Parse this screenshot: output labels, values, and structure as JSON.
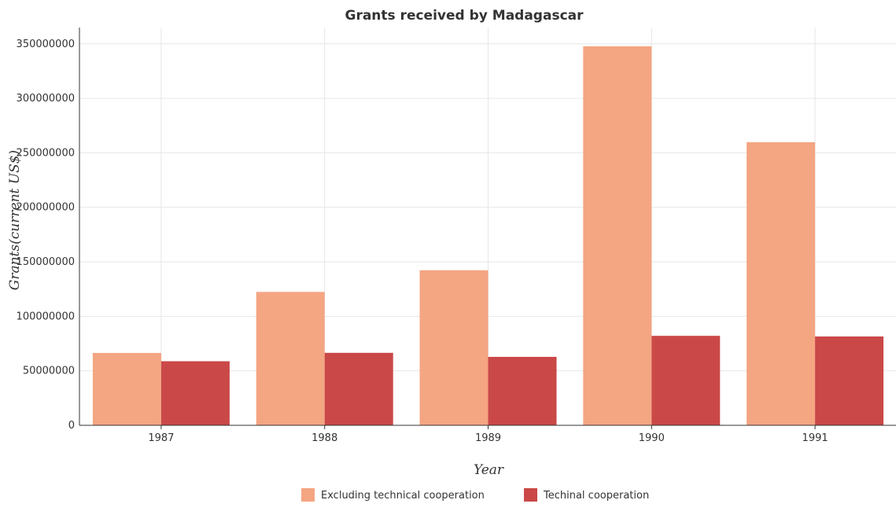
{
  "chart_data": {
    "type": "bar",
    "title": "Grants received by Madagascar",
    "xlabel": "Year",
    "ylabel": "Grants(current US$)",
    "categories": [
      "1987",
      "1988",
      "1989",
      "1990",
      "1991"
    ],
    "series": [
      {
        "name": "Excluding technical cooperation",
        "color": "#f4a582",
        "values": [
          66400000,
          122400000,
          142300000,
          347800000,
          259800000
        ]
      },
      {
        "name": "Techinal cooperation",
        "color": "#ca4848",
        "values": [
          58800000,
          66500000,
          62800000,
          82100000,
          81500000
        ]
      }
    ],
    "ylim": [
      0,
      365000000
    ],
    "yticks": [
      0,
      50000000,
      100000000,
      150000000,
      200000000,
      250000000,
      300000000,
      350000000
    ],
    "ytick_labels": [
      "0",
      "50000000",
      "100000000",
      "150000000",
      "200000000",
      "250000000",
      "300000000",
      "350000000"
    ],
    "grid": true,
    "legend_position": "bottom-center"
  }
}
